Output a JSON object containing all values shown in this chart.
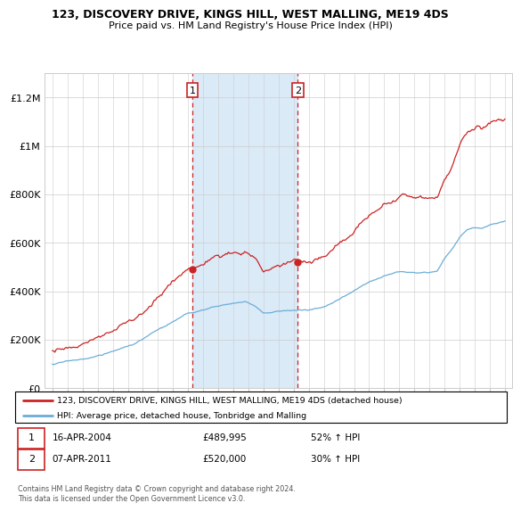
{
  "title": "123, DISCOVERY DRIVE, KINGS HILL, WEST MALLING, ME19 4DS",
  "subtitle": "Price paid vs. HM Land Registry's House Price Index (HPI)",
  "ylim": [
    0,
    1300000
  ],
  "yticks": [
    0,
    200000,
    400000,
    600000,
    800000,
    1000000,
    1200000
  ],
  "ytick_labels": [
    "£0",
    "£200K",
    "£400K",
    "£600K",
    "£800K",
    "£1M",
    "£1.2M"
  ],
  "xmin": 1994.5,
  "xmax": 2025.5,
  "sale1_year": 2004.29,
  "sale1_price": 489995,
  "sale2_year": 2011.27,
  "sale2_price": 520000,
  "legend_line1": "123, DISCOVERY DRIVE, KINGS HILL, WEST MALLING, ME19 4DS (detached house)",
  "legend_line2": "HPI: Average price, detached house, Tonbridge and Malling",
  "footnote": "Contains HM Land Registry data © Crown copyright and database right 2024.\nThis data is licensed under the Open Government Licence v3.0.",
  "hpi_color": "#6baed6",
  "price_color": "#cc2222",
  "shaded_color": "#dbeaf7",
  "grid_color": "#cccccc",
  "background_color": "#ffffff",
  "sale_box_color": "#cc2222"
}
